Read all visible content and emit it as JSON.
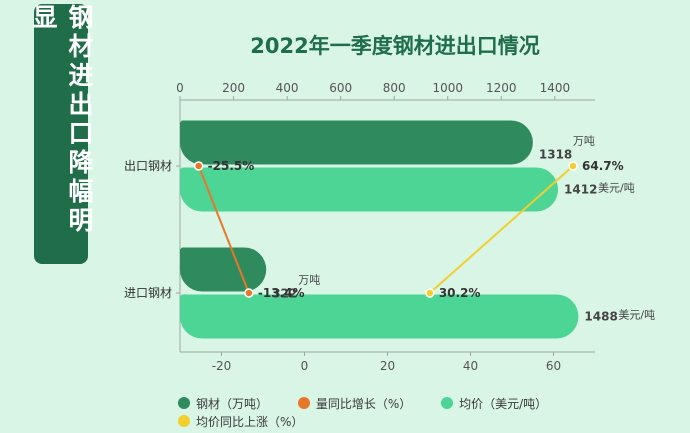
{
  "banner": {
    "text": "钢材进出口降幅明显"
  },
  "chart_data": {
    "type": "bar",
    "title": "2022年一季度钢材进出口情况",
    "categories": [
      "出口钢材",
      "进口钢材"
    ],
    "top_axis": {
      "ticks": [
        0,
        200,
        400,
        600,
        800,
        1000,
        1200,
        1400
      ],
      "range": [
        0,
        1550
      ]
    },
    "bottom_axis": {
      "ticks": [
        -20,
        0,
        20,
        40,
        60
      ],
      "range": [
        -30,
        70
      ]
    },
    "series": [
      {
        "name": "钢材（万吨）",
        "axis": "top",
        "color": "#2f8a5e",
        "values": [
          1318,
          322
        ],
        "unit_labels": [
          "万吨",
          "万吨"
        ]
      },
      {
        "name": "均价（美元/吨）",
        "axis": "top",
        "color": "#4dd596",
        "values": [
          1412,
          1488
        ],
        "unit_labels": [
          "美元/吨",
          "美元/吨"
        ]
      },
      {
        "name": "量同比增长（%）",
        "axis": "bottom",
        "color": "#e8772b",
        "values": [
          -25.5,
          -13.4
        ],
        "labels": [
          "-25.5%",
          "-13.4%"
        ]
      },
      {
        "name": "均价同比上涨（%）",
        "axis": "bottom",
        "color": "#f2cf2e",
        "values": [
          64.7,
          30.2
        ],
        "labels": [
          "64.7%",
          "30.2%"
        ]
      }
    ]
  },
  "legend": [
    {
      "label": "钢材（万吨）",
      "color": "#2f8a5e"
    },
    {
      "label": "量同比增长（%）",
      "color": "#e8772b"
    },
    {
      "label": "均价（美元/吨）",
      "color": "#4dd596"
    },
    {
      "label": "均价同比上涨（%）",
      "color": "#f2cf2e"
    }
  ]
}
